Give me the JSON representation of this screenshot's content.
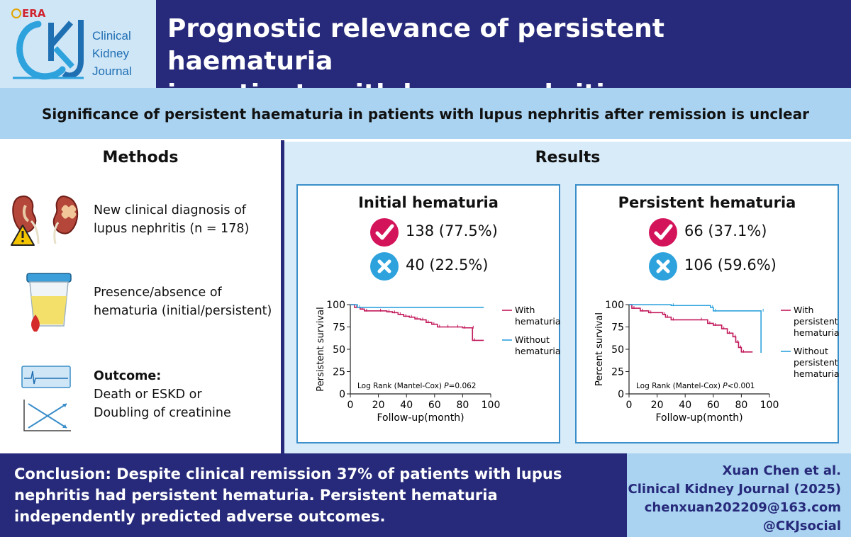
{
  "header": {
    "journal_logo_text": "ERA",
    "journal_name_lines": [
      "Clinical",
      "Kidney",
      "Journal"
    ],
    "title_lines": [
      "Prognostic relevance of persistent haematuria",
      "in patients with lupus nephritis"
    ]
  },
  "banner": {
    "text": "Significance of persistent haematuria in patients with lupus nephritis after remission is unclear"
  },
  "methods": {
    "title": "Methods",
    "item1_lines": [
      "New clinical diagnosis of",
      "lupus nephritis (n = 178)"
    ],
    "item2_lines": [
      "Presence/absence of",
      "hematuria (initial/persistent)"
    ],
    "item3_heading": "Outcome:",
    "item3_lines": [
      "Death or ESKD or",
      "Doubling of creatinine"
    ]
  },
  "results": {
    "title": "Results",
    "initial": {
      "title": "Initial hematuria",
      "with_value": "138 (77.5%)",
      "without_value": "40 (22.5%)"
    },
    "persistent": {
      "title": "Persistent hematuria",
      "with_value": "66 (37.1%)",
      "without_value": "106 (59.6%)"
    }
  },
  "colors": {
    "navy": "#272a7a",
    "light_blue": "#a9d3f1",
    "panel_bg": "#d8ebf9",
    "with_series": "#c2185b",
    "without_series": "#2ea2dd"
  },
  "chart_data": [
    {
      "type": "line",
      "xlabel": "Follow-up(month)",
      "ylabel": "Persistent survival",
      "xlim": [
        0,
        100
      ],
      "ylim": [
        0,
        100
      ],
      "xticks": [
        0,
        20,
        40,
        60,
        80,
        100
      ],
      "yticks": [
        0,
        25,
        50,
        75,
        100
      ],
      "annotation_prefix": "Log Rank (Mantel-Cox) ",
      "annotation_p": "P",
      "annotation_suffix": "=0.062",
      "series": [
        {
          "name": "With hematuria",
          "legend_lines": [
            "With",
            "hematuria"
          ],
          "points": [
            [
              0,
              100
            ],
            [
              3,
              97
            ],
            [
              7,
              95
            ],
            [
              10,
              93
            ],
            [
              20,
              93
            ],
            [
              26,
              92
            ],
            [
              30,
              91
            ],
            [
              34,
              89
            ],
            [
              38,
              87
            ],
            [
              42,
              86
            ],
            [
              46,
              84
            ],
            [
              50,
              83
            ],
            [
              54,
              80
            ],
            [
              58,
              78
            ],
            [
              62,
              75
            ],
            [
              68,
              75
            ],
            [
              75,
              75
            ],
            [
              80,
              74
            ],
            [
              86,
              74
            ],
            [
              87,
              60
            ],
            [
              95,
              60
            ]
          ]
        },
        {
          "name": "Without hematuria",
          "legend_lines": [
            "Without",
            "hematuria"
          ],
          "points": [
            [
              0,
              100
            ],
            [
              5,
              97
            ],
            [
              95,
              97
            ]
          ]
        }
      ]
    },
    {
      "type": "line",
      "xlabel": "Follow-up(month)",
      "ylabel": "Percent survival",
      "xlim": [
        0,
        100
      ],
      "ylim": [
        0,
        100
      ],
      "xticks": [
        0,
        20,
        40,
        60,
        80,
        100
      ],
      "yticks": [
        0,
        25,
        50,
        75,
        100
      ],
      "annotation_prefix": "Log Rank (Mantel-Cox) ",
      "annotation_p": "P",
      "annotation_suffix": "<0.001",
      "series": [
        {
          "name": "With persistent hematuria",
          "legend_lines": [
            "With",
            "persistent",
            "hematuria"
          ],
          "points": [
            [
              0,
              100
            ],
            [
              2,
              96
            ],
            [
              8,
              93
            ],
            [
              14,
              91
            ],
            [
              24,
              89
            ],
            [
              26,
              86
            ],
            [
              30,
              83
            ],
            [
              50,
              83
            ],
            [
              56,
              79
            ],
            [
              60,
              77
            ],
            [
              66,
              73
            ],
            [
              70,
              68
            ],
            [
              74,
              64
            ],
            [
              76,
              58
            ],
            [
              78,
              52
            ],
            [
              80,
              47
            ],
            [
              88,
              47
            ]
          ]
        },
        {
          "name": "Without persistent hematuria",
          "legend_lines": [
            "Without",
            "persistent",
            "hematuria"
          ],
          "points": [
            [
              0,
              100
            ],
            [
              30,
              99
            ],
            [
              58,
              97
            ],
            [
              60,
              93
            ],
            [
              94,
              93
            ],
            [
              94,
              46
            ]
          ]
        }
      ]
    }
  ],
  "conclusion": {
    "text": "Conclusion: Despite clinical remission 37% of patients with lupus nephritis had persistent hematuria. Persistent hematuria independently predicted adverse outcomes."
  },
  "citation": {
    "author": "Xuan Chen et al.",
    "journal": "Clinical Kidney Journal (2025)",
    "email": "chenxuan202209@163.com",
    "social": "@CKJsocial"
  }
}
